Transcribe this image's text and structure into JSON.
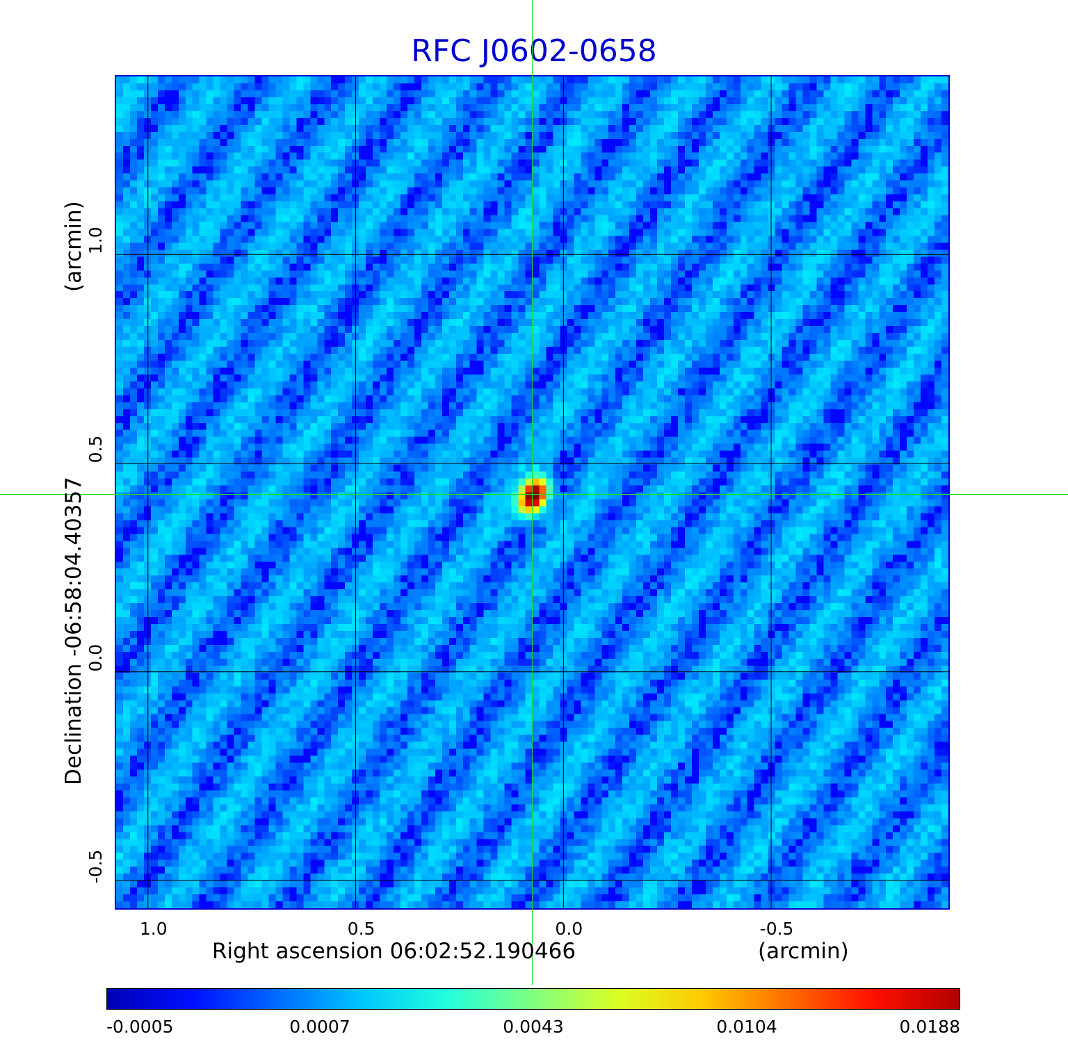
{
  "chart_data": {
    "type": "heatmap",
    "title": "RFC J0602-0658",
    "xlabel": "Right ascension  06:02:52.190466",
    "xlabel_unit": "(arcmin)",
    "ylabel": "Declination  -06:58:04.40357",
    "ylabel_unit": "(arcmin)",
    "x_ticks": [
      1.0,
      0.5,
      0.0,
      -0.5
    ],
    "x_tick_labels": [
      "1.0",
      "0.5",
      "0.0",
      "-0.5"
    ],
    "y_ticks": [
      1.0,
      0.5,
      0.0,
      -0.5
    ],
    "y_tick_labels": [
      "1.0",
      "0.5",
      "0.0",
      "-0.5"
    ],
    "xlim": [
      1.08,
      -0.93
    ],
    "ylim": [
      -0.57,
      1.43
    ],
    "grid": true,
    "crosshair": {
      "x": 0.075,
      "y": 0.425
    },
    "source_peak": {
      "x": 0.08,
      "y": 0.43,
      "value": 0.0188
    },
    "colorbar": {
      "colormap": "jet",
      "ticks": [
        "-0.0005",
        "0.0007",
        "0.0043",
        "0.0104",
        "0.0188"
      ],
      "min": -0.0005,
      "max": 0.0188
    },
    "colors": {
      "title": "#0000cc",
      "frame": "#0000cc",
      "crosshair": "#22dd22",
      "grid": "#000000"
    }
  }
}
